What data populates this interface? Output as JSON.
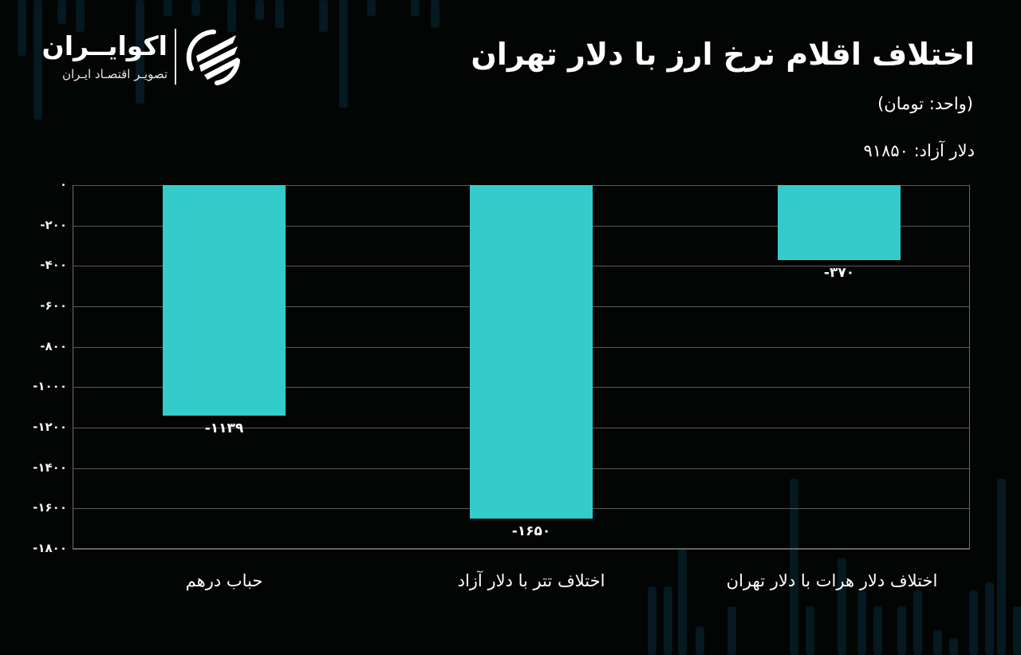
{
  "header": {
    "title": "اختلاف اقلام نرخ ارز با دلار تهران",
    "unit": "(واحد: تومان)",
    "free_dollar_label": "دلار آزاد:",
    "free_dollar_value": "۹۱۸۵۰"
  },
  "logo": {
    "name": "اکوایــران",
    "tagline": "تصویـر اقتصـاد ایـران",
    "mark_icon": "ecoiran-swoosh-logo-icon"
  },
  "colors": {
    "background": "#030404",
    "bar": "#34cbcb",
    "gridline": "#5a5a5a",
    "text": "#ffffff",
    "bg_stripes": "#06202a"
  },
  "y_axis": {
    "ticks": [
      {
        "value": 0,
        "label": "۰"
      },
      {
        "value": -200,
        "label": "-۲۰۰"
      },
      {
        "value": -400,
        "label": "-۴۰۰"
      },
      {
        "value": -600,
        "label": "-۶۰۰"
      },
      {
        "value": -800,
        "label": "-۸۰۰"
      },
      {
        "value": -1000,
        "label": "-۱۰۰۰"
      },
      {
        "value": -1200,
        "label": "-۱۲۰۰"
      },
      {
        "value": -1400,
        "label": "-۱۴۰۰"
      },
      {
        "value": -1600,
        "label": "-۱۶۰۰"
      },
      {
        "value": -1800,
        "label": "-۱۸۰۰"
      }
    ]
  },
  "bars": [
    {
      "category": "حباب درهم",
      "value": -1139,
      "label": "-۱۱۳۹"
    },
    {
      "category": "اختلاف تتر با دلار آزاد",
      "value": -1650,
      "label": "-۱۶۵۰"
    },
    {
      "category": "اختلاف دلار هرات با دلار تهران",
      "value": -370,
      "label": "-۳۷۰"
    }
  ],
  "chart_data": {
    "type": "bar",
    "title": "اختلاف اقلام نرخ ارز با دلار تهران",
    "subtitle": "(واحد: تومان) — دلار آزاد: ۹۱۸۵۰",
    "categories": [
      "حباب درهم",
      "اختلاف تتر با دلار آزاد",
      "اختلاف دلار هرات با دلار تهران"
    ],
    "values": [
      -1139,
      -1650,
      -370
    ],
    "data_labels": [
      "-۱۱۳۹",
      "-۱۶۵۰",
      "-۳۷۰"
    ],
    "xlabel": "",
    "ylabel": "",
    "ylim": [
      -1800,
      0
    ],
    "yticks": [
      0,
      -200,
      -400,
      -600,
      -800,
      -1000,
      -1200,
      -1400,
      -1600,
      -1800
    ],
    "grid": true,
    "legend": "none",
    "series_color": "#34cbcb"
  }
}
